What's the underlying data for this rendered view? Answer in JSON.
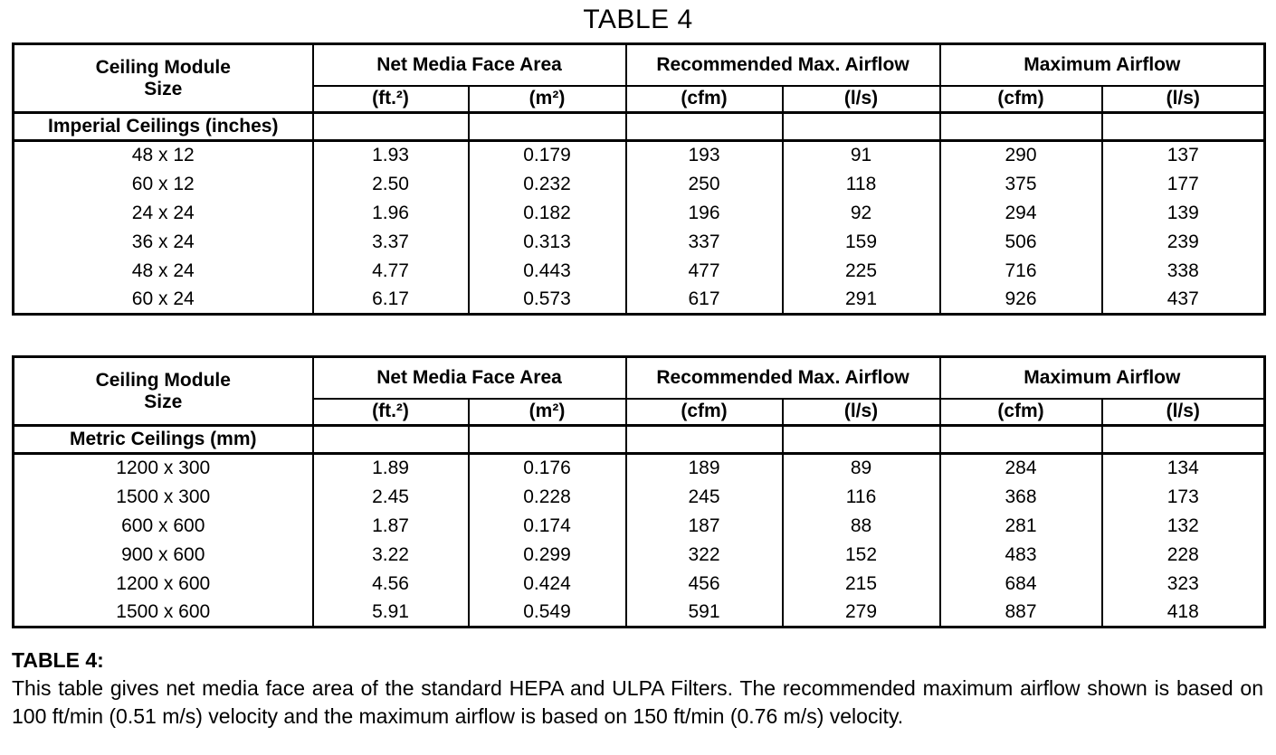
{
  "title": "TABLE 4",
  "tables": [
    {
      "name": "imperial",
      "header": {
        "col1_line1": "Ceiling Module",
        "col1_line2": "Size",
        "groups": [
          "Net Media Face Area",
          "Recommended Max. Airflow",
          "Maximum Airflow"
        ],
        "units": [
          "(ft.²)",
          "(m²)",
          "(cfm)",
          "(l/s)",
          "(cfm)",
          "(l/s)"
        ]
      },
      "section_label": "Imperial Ceilings (inches)",
      "rows": [
        [
          "48 x 12",
          "1.93",
          "0.179",
          "193",
          "91",
          "290",
          "137"
        ],
        [
          "60 x 12",
          "2.50",
          "0.232",
          "250",
          "118",
          "375",
          "177"
        ],
        [
          "24 x 24",
          "1.96",
          "0.182",
          "196",
          "92",
          "294",
          "139"
        ],
        [
          "36 x 24",
          "3.37",
          "0.313",
          "337",
          "159",
          "506",
          "239"
        ],
        [
          "48 x 24",
          "4.77",
          "0.443",
          "477",
          "225",
          "716",
          "338"
        ],
        [
          "60 x 24",
          "6.17",
          "0.573",
          "617",
          "291",
          "926",
          "437"
        ]
      ]
    },
    {
      "name": "metric",
      "header": {
        "col1_line1": "Ceiling Module",
        "col1_line2": "Size",
        "groups": [
          "Net Media Face Area",
          "Recommended Max. Airflow",
          "Maximum Airflow"
        ],
        "units": [
          "(ft.²)",
          "(m²)",
          "(cfm)",
          "(l/s)",
          "(cfm)",
          "(l/s)"
        ]
      },
      "section_label": "Metric Ceilings (mm)",
      "rows": [
        [
          "1200 x 300",
          "1.89",
          "0.176",
          "189",
          "89",
          "284",
          "134"
        ],
        [
          "1500 x 300",
          "2.45",
          "0.228",
          "245",
          "116",
          "368",
          "173"
        ],
        [
          "600 x 600",
          "1.87",
          "0.174",
          "187",
          "88",
          "281",
          "132"
        ],
        [
          "900 x 600",
          "3.22",
          "0.299",
          "322",
          "152",
          "483",
          "228"
        ],
        [
          "1200 x 600",
          "4.56",
          "0.424",
          "456",
          "215",
          "684",
          "323"
        ],
        [
          "1500 x 600",
          "5.91",
          "0.549",
          "591",
          "279",
          "887",
          "418"
        ]
      ]
    }
  ],
  "footnote": {
    "label": "TABLE 4:",
    "text": "This table gives net media face area of the standard HEPA and ULPA Filters. The recommended maximum airflow shown is based on 100 ft/min (0.51 m/s) velocity and the maximum airflow is based on 150 ft/min (0.76 m/s) velocity."
  }
}
